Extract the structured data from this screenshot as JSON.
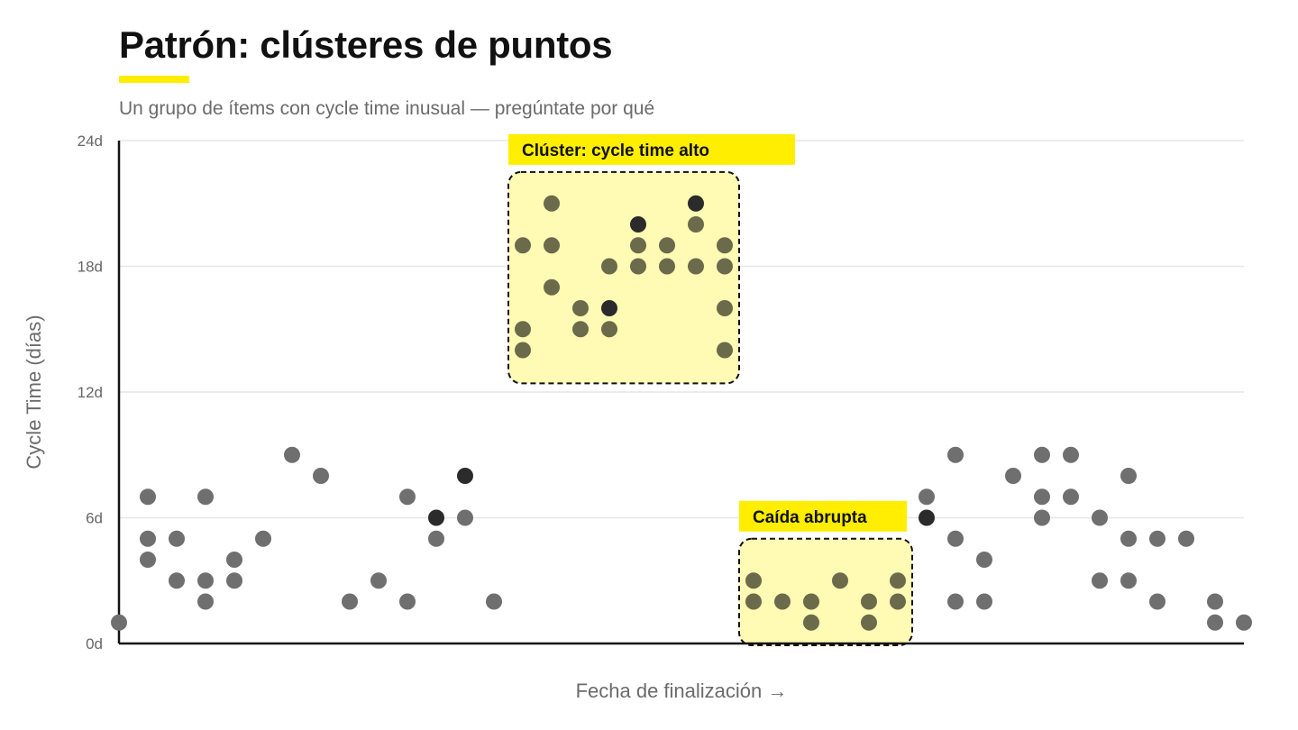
{
  "header": {
    "title": "Patrón: clústeres de puntos",
    "subtitle": "Un grupo de ítems con cycle time inusual — pregúntate por qué"
  },
  "colors": {
    "accent": "#FFEE00",
    "highlight_fill": "#FFFAB4",
    "dot": "#6f6f6f",
    "dot_in_cluster": "#6b6a4a",
    "dot_dark": "#2b2b2b",
    "gridline": "#e6e6e6",
    "axis": "#111111"
  },
  "chart_data": {
    "type": "scatter",
    "xlabel": "Fecha de finalización →",
    "ylabel": "Cycle Time (días)",
    "ylim": [
      0,
      24
    ],
    "yticks": [
      {
        "value": 0,
        "label": "0d"
      },
      {
        "value": 6,
        "label": "6d"
      },
      {
        "value": 12,
        "label": "12d"
      },
      {
        "value": 18,
        "label": "18d"
      },
      {
        "value": 24,
        "label": "24d"
      }
    ],
    "xlim": [
      0,
      39
    ],
    "grid": true,
    "points": [
      {
        "x": 0,
        "y": 1
      },
      {
        "x": 1,
        "y": 4
      },
      {
        "x": 1,
        "y": 5
      },
      {
        "x": 1,
        "y": 7
      },
      {
        "x": 2,
        "y": 3
      },
      {
        "x": 2,
        "y": 5
      },
      {
        "x": 3,
        "y": 2
      },
      {
        "x": 3,
        "y": 3
      },
      {
        "x": 3,
        "y": 7
      },
      {
        "x": 4,
        "y": 3
      },
      {
        "x": 4,
        "y": 4
      },
      {
        "x": 5,
        "y": 5
      },
      {
        "x": 6,
        "y": 9
      },
      {
        "x": 7,
        "y": 8
      },
      {
        "x": 8,
        "y": 2
      },
      {
        "x": 9,
        "y": 3
      },
      {
        "x": 10,
        "y": 2
      },
      {
        "x": 10,
        "y": 7
      },
      {
        "x": 11,
        "y": 5
      },
      {
        "x": 11,
        "y": 6,
        "highlight": true
      },
      {
        "x": 12,
        "y": 6
      },
      {
        "x": 12,
        "y": 8,
        "highlight": true
      },
      {
        "x": 13,
        "y": 2
      },
      {
        "x": 14,
        "y": 14
      },
      {
        "x": 14,
        "y": 15
      },
      {
        "x": 14,
        "y": 19
      },
      {
        "x": 15,
        "y": 17
      },
      {
        "x": 15,
        "y": 19
      },
      {
        "x": 15,
        "y": 21
      },
      {
        "x": 16,
        "y": 15
      },
      {
        "x": 16,
        "y": 16
      },
      {
        "x": 17,
        "y": 15
      },
      {
        "x": 17,
        "y": 16,
        "highlight": true
      },
      {
        "x": 17,
        "y": 18
      },
      {
        "x": 18,
        "y": 18
      },
      {
        "x": 18,
        "y": 19
      },
      {
        "x": 18,
        "y": 20,
        "highlight": true
      },
      {
        "x": 19,
        "y": 18
      },
      {
        "x": 19,
        "y": 19
      },
      {
        "x": 20,
        "y": 18
      },
      {
        "x": 20,
        "y": 20
      },
      {
        "x": 20,
        "y": 21,
        "highlight": true
      },
      {
        "x": 21,
        "y": 14
      },
      {
        "x": 21,
        "y": 16
      },
      {
        "x": 21,
        "y": 18
      },
      {
        "x": 21,
        "y": 19
      },
      {
        "x": 22,
        "y": 2
      },
      {
        "x": 22,
        "y": 3
      },
      {
        "x": 23,
        "y": 2
      },
      {
        "x": 24,
        "y": 1
      },
      {
        "x": 24,
        "y": 2
      },
      {
        "x": 25,
        "y": 3
      },
      {
        "x": 26,
        "y": 1
      },
      {
        "x": 26,
        "y": 2
      },
      {
        "x": 27,
        "y": 2
      },
      {
        "x": 27,
        "y": 3
      },
      {
        "x": 28,
        "y": 6,
        "highlight": true
      },
      {
        "x": 28,
        "y": 7
      },
      {
        "x": 29,
        "y": 2
      },
      {
        "x": 29,
        "y": 5
      },
      {
        "x": 29,
        "y": 9
      },
      {
        "x": 30,
        "y": 2
      },
      {
        "x": 30,
        "y": 4
      },
      {
        "x": 31,
        "y": 8
      },
      {
        "x": 32,
        "y": 6
      },
      {
        "x": 32,
        "y": 7
      },
      {
        "x": 32,
        "y": 9
      },
      {
        "x": 33,
        "y": 7
      },
      {
        "x": 33,
        "y": 9
      },
      {
        "x": 34,
        "y": 3
      },
      {
        "x": 34,
        "y": 6
      },
      {
        "x": 35,
        "y": 3
      },
      {
        "x": 35,
        "y": 5
      },
      {
        "x": 35,
        "y": 8
      },
      {
        "x": 36,
        "y": 2
      },
      {
        "x": 36,
        "y": 5
      },
      {
        "x": 37,
        "y": 5
      },
      {
        "x": 38,
        "y": 1
      },
      {
        "x": 38,
        "y": 2
      },
      {
        "x": 39,
        "y": 1
      }
    ],
    "annotations": [
      {
        "label": "Clúster: cycle time alto",
        "x_range": [
          14,
          21
        ],
        "y_range": [
          12.5,
          22.5
        ]
      },
      {
        "label": "Caída abrupta",
        "x_range": [
          22,
          27
        ],
        "y_range": [
          0,
          5
        ]
      }
    ]
  }
}
